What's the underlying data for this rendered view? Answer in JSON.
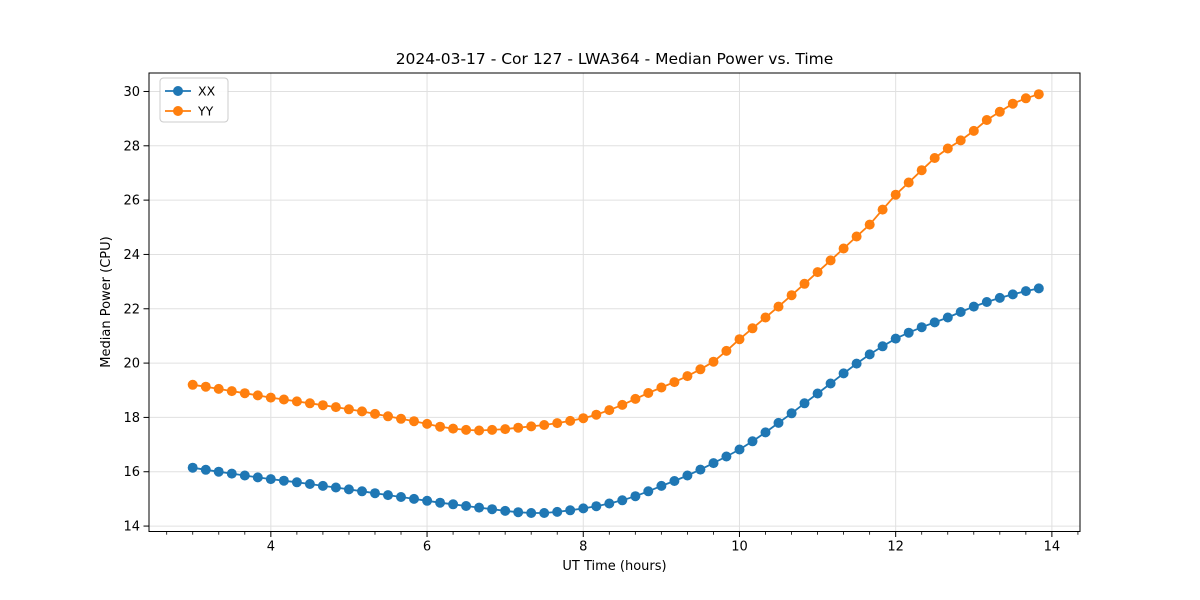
{
  "figure": {
    "background": "#ffffff"
  },
  "chart_data": {
    "type": "line",
    "title": "2024-03-17 - Cor 127 - LWA364 - Median Power vs. Time",
    "xlabel": "UT Time (hours)",
    "ylabel": "Median Power (CPU)",
    "xlim": [
      2.44,
      14.36
    ],
    "ylim": [
      13.8,
      30.68
    ],
    "xticks": [
      4,
      6,
      8,
      10,
      12,
      14
    ],
    "yticks": [
      14,
      16,
      18,
      20,
      22,
      24,
      26,
      28,
      30
    ],
    "x_minor_divisions": 6,
    "grid": true,
    "grid_color": "#e0e0e0",
    "axis_color": "#000000",
    "legend_position": "upper-left",
    "x": [
      3.0,
      3.167,
      3.333,
      3.5,
      3.667,
      3.833,
      4.0,
      4.167,
      4.333,
      4.5,
      4.667,
      4.833,
      5.0,
      5.167,
      5.333,
      5.5,
      5.667,
      5.833,
      6.0,
      6.167,
      6.333,
      6.5,
      6.667,
      6.833,
      7.0,
      7.167,
      7.333,
      7.5,
      7.667,
      7.833,
      8.0,
      8.167,
      8.333,
      8.5,
      8.667,
      8.833,
      9.0,
      9.167,
      9.333,
      9.5,
      9.667,
      9.833,
      10.0,
      10.167,
      10.333,
      10.5,
      10.667,
      10.833,
      11.0,
      11.167,
      11.333,
      11.5,
      11.667,
      11.833,
      12.0,
      12.167,
      12.333,
      12.5,
      12.667,
      12.833,
      13.0,
      13.167,
      13.333,
      13.5,
      13.667,
      13.833
    ],
    "series": [
      {
        "name": "XX",
        "color": "#1f77b4",
        "marker": "o",
        "values": [
          16.15,
          16.07,
          16.0,
          15.93,
          15.86,
          15.79,
          15.73,
          15.67,
          15.61,
          15.55,
          15.48,
          15.42,
          15.35,
          15.28,
          15.21,
          15.14,
          15.07,
          15.0,
          14.93,
          14.86,
          14.8,
          14.74,
          14.68,
          14.62,
          14.56,
          14.51,
          14.48,
          14.48,
          14.52,
          14.58,
          14.65,
          14.73,
          14.83,
          14.95,
          15.1,
          15.28,
          15.48,
          15.66,
          15.86,
          16.08,
          16.32,
          16.56,
          16.82,
          17.12,
          17.45,
          17.8,
          18.15,
          18.52,
          18.88,
          19.25,
          19.62,
          19.98,
          20.32,
          20.62,
          20.9,
          21.12,
          21.32,
          21.5,
          21.68,
          21.88,
          22.08,
          22.25,
          22.4,
          22.53,
          22.65,
          22.75
        ]
      },
      {
        "name": "YY",
        "color": "#ff7f0e",
        "marker": "o",
        "values": [
          19.2,
          19.13,
          19.05,
          18.97,
          18.89,
          18.81,
          18.73,
          18.66,
          18.59,
          18.52,
          18.45,
          18.38,
          18.3,
          18.22,
          18.13,
          18.04,
          17.95,
          17.86,
          17.76,
          17.66,
          17.59,
          17.54,
          17.52,
          17.54,
          17.57,
          17.62,
          17.67,
          17.72,
          17.79,
          17.87,
          17.97,
          18.1,
          18.27,
          18.46,
          18.68,
          18.9,
          19.1,
          19.3,
          19.52,
          19.77,
          20.05,
          20.45,
          20.88,
          21.28,
          21.68,
          22.08,
          22.5,
          22.92,
          23.35,
          23.78,
          24.22,
          24.66,
          25.1,
          25.65,
          26.2,
          26.65,
          27.1,
          27.55,
          27.9,
          28.2,
          28.55,
          28.95,
          29.25,
          29.55,
          29.75,
          29.9
        ]
      }
    ]
  }
}
